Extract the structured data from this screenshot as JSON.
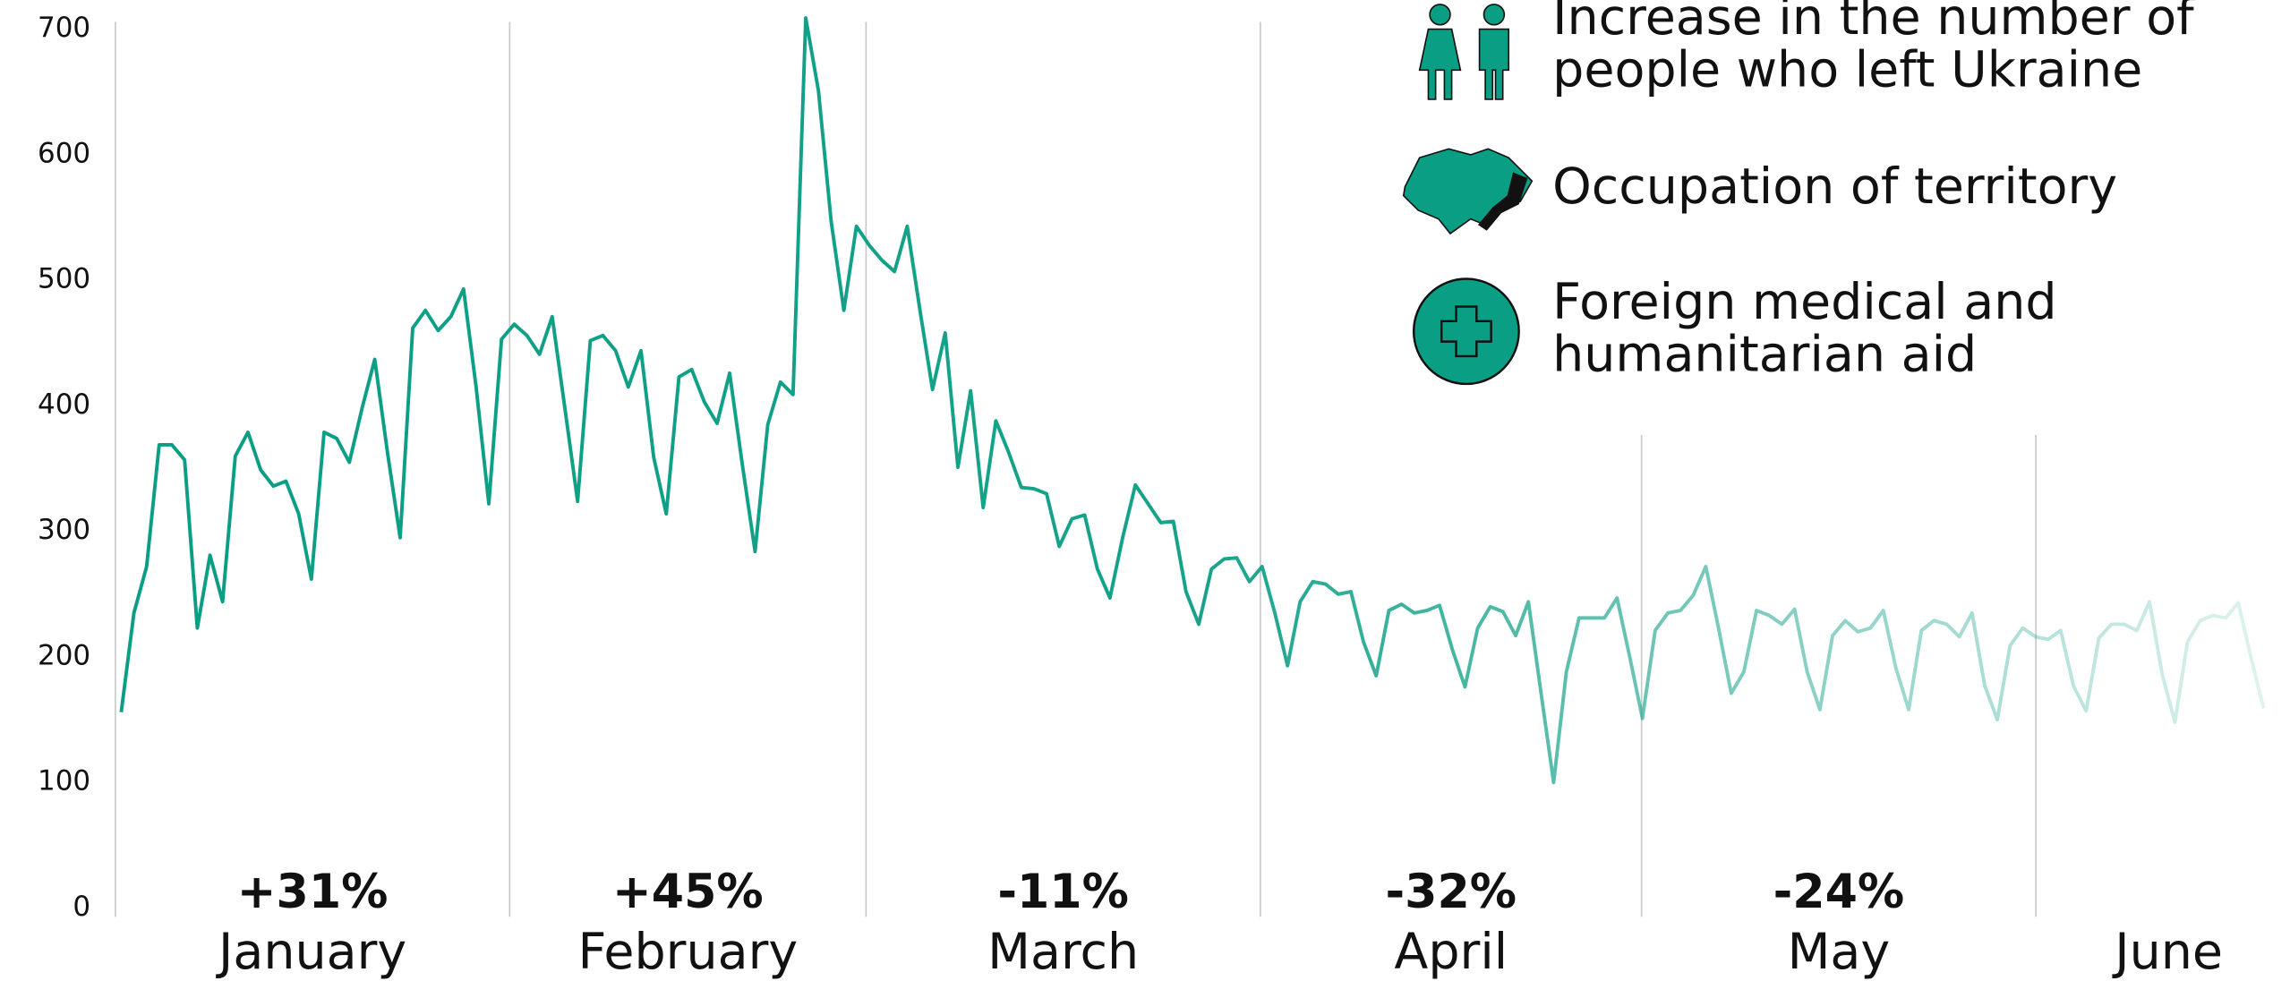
{
  "chart_data": {
    "type": "line",
    "color": "#0a9e84",
    "values": [
      156,
      235,
      272,
      369,
      369,
      357,
      223,
      281,
      244,
      360,
      379,
      349,
      336,
      340,
      314,
      262,
      379,
      374,
      355,
      398,
      437,
      363,
      295,
      462,
      476,
      460,
      471,
      493,
      415,
      322,
      453,
      465,
      456,
      441,
      471,
      398,
      324,
      452,
      456,
      444,
      415,
      444,
      359,
      314,
      423,
      429,
      403,
      386,
      426,
      353,
      284,
      385,
      419,
      409,
      709,
      651,
      547,
      476,
      543,
      528,
      516,
      507,
      543,
      477,
      413,
      458,
      351,
      412,
      319,
      388,
      363,
      335,
      334,
      330,
      288,
      310,
      313,
      270,
      247,
      295,
      337,
      322,
      307,
      308,
      252,
      226,
      270,
      278,
      279,
      260,
      272,
      235,
      193,
      244,
      260,
      258,
      250,
      252,
      212,
      185,
      237,
      242,
      235,
      237,
      241,
      206,
      176,
      223,
      240,
      236,
      217,
      244,
      171,
      100,
      188,
      231,
      231,
      231,
      247,
      200,
      151,
      221,
      235,
      237,
      249,
      272,
      223,
      171,
      188,
      237,
      233,
      226,
      238,
      188,
      158,
      217,
      229,
      220,
      223,
      237,
      191,
      158,
      221,
      229,
      226,
      216,
      235,
      177,
      150,
      209,
      223,
      216,
      214,
      221,
      177,
      157,
      215,
      226,
      226,
      221,
      244,
      186,
      148,
      212,
      229,
      233,
      231,
      243,
      200,
      159
    ],
    "ylim": [
      0,
      700
    ],
    "yticks": [
      0,
      100,
      200,
      300,
      400,
      500,
      600,
      700
    ],
    "months": [
      "January",
      "February",
      "March",
      "April",
      "May",
      "June"
    ],
    "changes": [
      "+31%",
      "+45%",
      "-11%",
      "-32%",
      "-24%"
    ],
    "legend": [
      {
        "lines": [
          "Increase in the number of",
          "people who left Ukraine"
        ]
      },
      {
        "lines": [
          "Occupation of territory"
        ]
      },
      {
        "lines": [
          "Foreign medical and",
          "humanitarian aid"
        ]
      }
    ]
  }
}
